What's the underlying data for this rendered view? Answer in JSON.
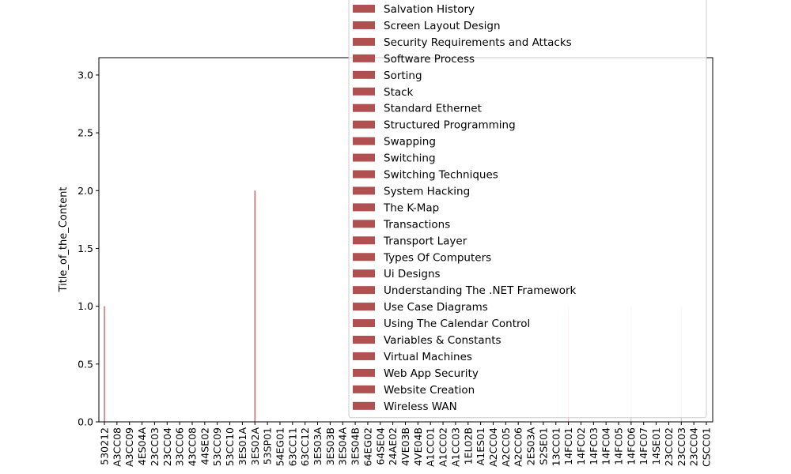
{
  "chart_data": {
    "type": "bar",
    "title": "",
    "xlabel": "",
    "ylabel": "Title_of_the_Content",
    "ylim": [
      0,
      3.15
    ],
    "yticks": [
      "0.0",
      "0.5",
      "1.0",
      "1.5",
      "2.0",
      "2.5",
      "3.0"
    ],
    "grid": false,
    "legend_position": "upper-right (overlapping plot)",
    "bar_color": "#b05050",
    "categories": [
      "530212",
      "A3CC08",
      "A3CC09",
      "4ES04A",
      "23CC03",
      "23CC04",
      "33CC06",
      "43CC08",
      "44SE02",
      "53CC09",
      "53CC10",
      "3ES01A",
      "3ES02A",
      "53SP01",
      "54EG01",
      "63CC11",
      "63CC12",
      "3ES03A",
      "3ES03B",
      "3ES04A",
      "3ES04B",
      "64EG02",
      "64SE04",
      "24AE02",
      "4VE03B",
      "4VE04B",
      "A1CC01",
      "A1CC02",
      "A1CC03",
      "1EL02B",
      "A1ES01",
      "A2CC04",
      "A2CC05",
      "A2CC06",
      "2ES03A",
      "S2SE01",
      "13CC01",
      "14FC01",
      "14FC02",
      "14FC03",
      "14FC04",
      "14FC05",
      "14FC06",
      "14FC07",
      "14SE01",
      "23CC02",
      "23CC03",
      "23CC04",
      "CSCC01"
    ],
    "values": [
      1,
      0,
      0,
      0,
      0,
      0,
      0,
      0,
      0,
      0,
      0,
      0,
      2,
      0,
      0,
      0,
      0,
      0,
      0,
      0,
      0,
      0,
      0,
      0,
      0,
      0,
      0,
      0,
      0,
      0,
      0,
      0,
      0,
      0,
      0,
      0,
      0,
      1,
      0,
      0,
      0,
      0,
      1,
      0,
      0,
      0,
      1,
      0,
      0
    ],
    "legend": [
      "Salvation History",
      "Screen Layout Design",
      "Security Requirements and Attacks",
      "Software Process",
      "Sorting",
      "Stack",
      "Standard Ethernet",
      "Structured Programming",
      "Swapping",
      "Switching",
      "Switching Techniques",
      "System Hacking",
      "The K-Map",
      "Transactions",
      "Transport Layer",
      "Types Of Computers",
      "Ui Designs",
      "Understanding The .NET Framework",
      "Use Case Diagrams",
      "Using The Calendar Control",
      "Variables & Constants",
      "Virtual Machines",
      "Web App Security",
      "Website Creation",
      "Wireless WAN"
    ]
  }
}
